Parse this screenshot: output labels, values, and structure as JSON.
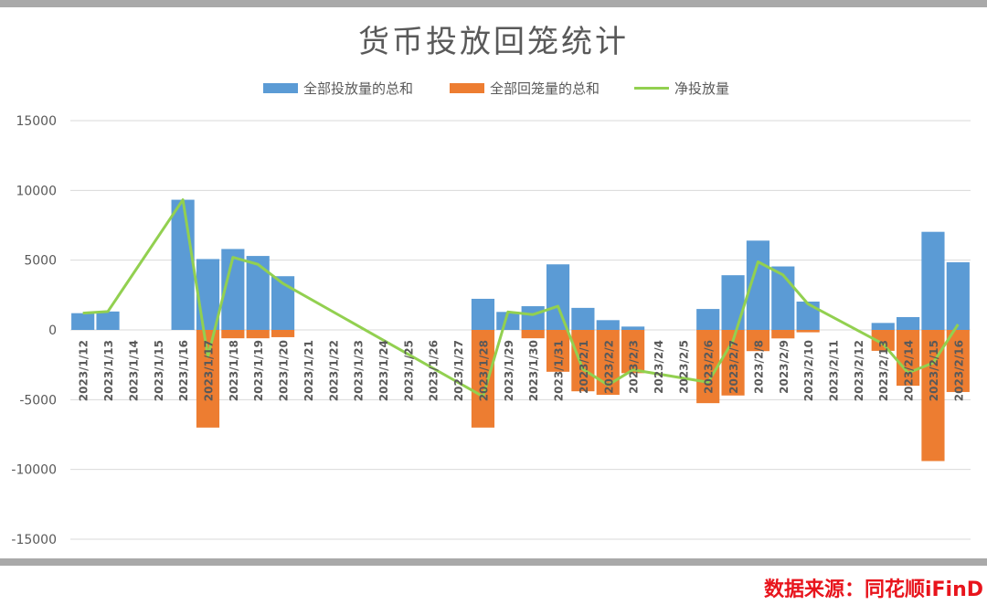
{
  "colors": {
    "release": "#5b9bd5",
    "withdraw": "#ed7d31",
    "net": "#92d050",
    "grid": "#d9d9d9",
    "axis_text": "#595959",
    "source": "#e8141c"
  },
  "chart_data": {
    "type": "bar",
    "title": "货币投放回笼统计",
    "xlabel": "",
    "ylabel": "",
    "ylim": [
      -15000,
      15000
    ],
    "yticks": [
      "15000",
      "10000",
      "5000",
      "0",
      "-5000",
      "-10000",
      "-15000"
    ],
    "grid": true,
    "legend_position": "top",
    "categories": [
      "2023/1/12",
      "2023/1/13",
      "2023/1/14",
      "2023/1/15",
      "2023/1/16",
      "2023/1/17",
      "2023/1/18",
      "2023/1/19",
      "2023/1/20",
      "2023/1/21",
      "2023/1/22",
      "2023/1/23",
      "2023/1/24",
      "2023/1/25",
      "2023/1/26",
      "2023/1/27",
      "2023/1/28",
      "2023/1/29",
      "2023/1/30",
      "2023/1/31",
      "2023/2/1",
      "2023/2/2",
      "2023/2/3",
      "2023/2/4",
      "2023/2/5",
      "2023/2/6",
      "2023/2/7",
      "2023/2/8",
      "2023/2/9",
      "2023/2/10",
      "2023/2/11",
      "2023/2/12",
      "2023/2/13",
      "2023/2/14",
      "2023/2/15",
      "2023/2/16"
    ],
    "series": [
      {
        "name": "全部投放量的总和",
        "kind": "bar",
        "values": [
          1200,
          1320,
          null,
          null,
          9330,
          5080,
          5800,
          5300,
          3850,
          null,
          null,
          null,
          null,
          null,
          null,
          null,
          2230,
          1290,
          1700,
          4700,
          1580,
          700,
          240,
          null,
          null,
          1500,
          3920,
          6400,
          4550,
          2030,
          null,
          null,
          500,
          920,
          7030,
          4850
        ]
      },
      {
        "name": "全部回笼量的总和",
        "kind": "bar",
        "values": [
          null,
          null,
          null,
          null,
          null,
          -7000,
          -600,
          -600,
          -520,
          null,
          null,
          null,
          null,
          null,
          null,
          null,
          -7000,
          null,
          -600,
          -3000,
          -4400,
          -4650,
          -3100,
          null,
          null,
          -5250,
          -4700,
          -1520,
          -610,
          -170,
          null,
          null,
          -1500,
          -4000,
          -9400,
          -4450
        ]
      },
      {
        "name": "净投放量",
        "kind": "line",
        "values": [
          1200,
          1320,
          null,
          null,
          9330,
          -1920,
          5200,
          4700,
          3330,
          null,
          null,
          null,
          null,
          null,
          null,
          null,
          -4770,
          1290,
          1100,
          1700,
          -2820,
          -3950,
          -2860,
          null,
          null,
          -3750,
          -780,
          4880,
          3940,
          1860,
          null,
          null,
          -1000,
          -3080,
          -2370,
          400
        ]
      }
    ]
  },
  "source_note": "数据来源：同花顺iFinD"
}
